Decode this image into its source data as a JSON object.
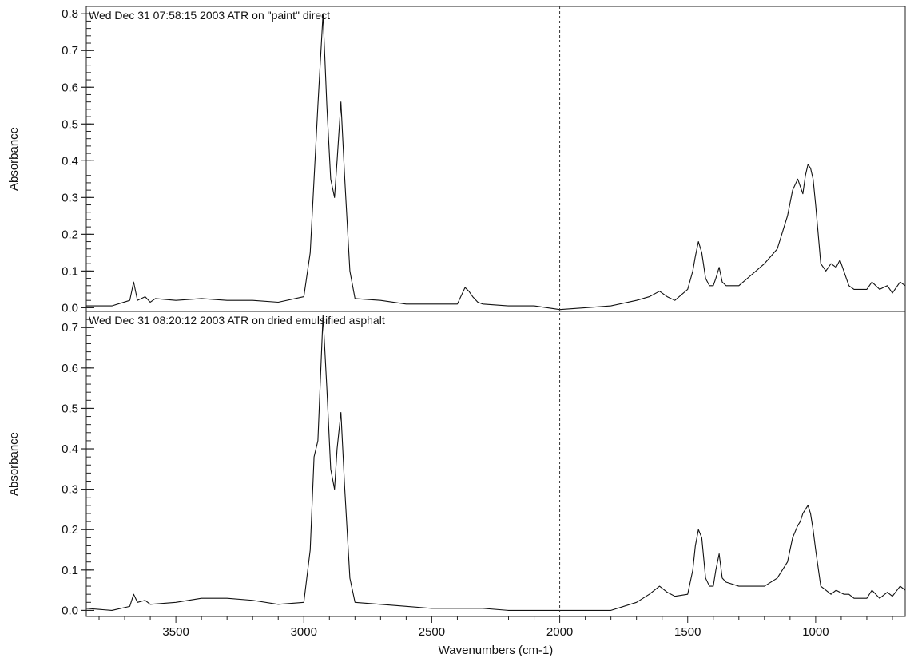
{
  "chart_data": {
    "type": "line",
    "xlabel": "Wavenumbers (cm-1)",
    "xlim": [
      3850,
      650
    ],
    "x_reversed": true,
    "xticks": [
      3500,
      3000,
      2500,
      2000,
      1500,
      1000
    ],
    "xtick_labels": [
      "3500",
      "3000",
      "2500",
      "2000",
      "1500",
      "1000"
    ],
    "reference_line_x": 2000,
    "panels": [
      {
        "title": "Wed Dec 31 07:58:15 2003  ATR on \"paint\" direct",
        "ylabel": "Absorbance",
        "ylim": [
          -0.01,
          0.82
        ],
        "yticks": [
          0.0,
          0.1,
          0.2,
          0.3,
          0.4,
          0.5,
          0.6,
          0.7,
          0.8
        ],
        "ytick_labels": [
          "0.0",
          "0.1",
          "0.2",
          "0.3",
          "0.4",
          "0.5",
          "0.6",
          "0.7",
          "0.8"
        ],
        "series": [
          {
            "x": [
              3850,
              3750,
              3680,
              3665,
              3650,
              3620,
              3600,
              3580,
              3500,
              3400,
              3300,
              3200,
              3100,
              3000,
              2975,
              2960,
              2945,
              2925,
              2910,
              2895,
              2880,
              2870,
              2855,
              2840,
              2820,
              2800,
              2700,
              2600,
              2500,
              2400,
              2370,
              2355,
              2340,
              2320,
              2300,
              2200,
              2100,
              2000,
              1900,
              1800,
              1700,
              1650,
              1610,
              1580,
              1550,
              1500,
              1480,
              1470,
              1458,
              1445,
              1430,
              1415,
              1400,
              1390,
              1377,
              1365,
              1350,
              1300,
              1250,
              1200,
              1150,
              1110,
              1090,
              1070,
              1060,
              1050,
              1040,
              1030,
              1020,
              1010,
              1000,
              980,
              960,
              940,
              920,
              905,
              890,
              870,
              850,
              800,
              780,
              750,
              720,
              700,
              670,
              650
            ],
            "y": [
              0.005,
              0.005,
              0.02,
              0.07,
              0.02,
              0.03,
              0.015,
              0.025,
              0.02,
              0.025,
              0.02,
              0.02,
              0.015,
              0.03,
              0.15,
              0.35,
              0.55,
              0.8,
              0.55,
              0.35,
              0.3,
              0.4,
              0.56,
              0.35,
              0.1,
              0.025,
              0.02,
              0.01,
              0.01,
              0.01,
              0.055,
              0.045,
              0.03,
              0.015,
              0.01,
              0.005,
              0.005,
              -0.005,
              0.0,
              0.005,
              0.02,
              0.03,
              0.045,
              0.03,
              0.02,
              0.05,
              0.1,
              0.14,
              0.18,
              0.15,
              0.08,
              0.06,
              0.06,
              0.08,
              0.11,
              0.07,
              0.06,
              0.06,
              0.09,
              0.12,
              0.16,
              0.25,
              0.32,
              0.35,
              0.33,
              0.31,
              0.36,
              0.39,
              0.38,
              0.35,
              0.28,
              0.12,
              0.1,
              0.12,
              0.11,
              0.13,
              0.1,
              0.06,
              0.05,
              0.05,
              0.07,
              0.05,
              0.06,
              0.04,
              0.07,
              0.06
            ]
          }
        ]
      },
      {
        "title": "Wed Dec 31 08:20:12 2003  ATR on dried emulsified asphalt",
        "ylabel": "Absorbance",
        "ylim": [
          -0.015,
          0.74
        ],
        "yticks": [
          0.0,
          0.1,
          0.2,
          0.3,
          0.4,
          0.5,
          0.6,
          0.7
        ],
        "ytick_labels": [
          "0.0",
          "0.1",
          "0.2",
          "0.3",
          "0.4",
          "0.5",
          "0.6",
          "0.7"
        ],
        "series": [
          {
            "x": [
              3850,
              3750,
              3680,
              3665,
              3650,
              3620,
              3600,
              3500,
              3400,
              3300,
              3200,
              3100,
              3000,
              2975,
              2960,
              2945,
              2925,
              2910,
              2895,
              2880,
              2870,
              2855,
              2840,
              2820,
              2800,
              2700,
              2600,
              2500,
              2400,
              2300,
              2200,
              2100,
              2000,
              1900,
              1800,
              1700,
              1650,
              1610,
              1580,
              1550,
              1500,
              1480,
              1470,
              1458,
              1445,
              1430,
              1415,
              1400,
              1390,
              1377,
              1365,
              1350,
              1300,
              1250,
              1200,
              1150,
              1110,
              1090,
              1070,
              1060,
              1050,
              1040,
              1030,
              1020,
              1010,
              1000,
              980,
              960,
              940,
              920,
              905,
              890,
              870,
              850,
              800,
              780,
              750,
              720,
              700,
              670,
              650
            ],
            "y": [
              0.005,
              0.0,
              0.01,
              0.04,
              0.02,
              0.025,
              0.015,
              0.02,
              0.03,
              0.03,
              0.025,
              0.015,
              0.02,
              0.15,
              0.38,
              0.42,
              0.73,
              0.55,
              0.35,
              0.3,
              0.4,
              0.49,
              0.3,
              0.08,
              0.02,
              0.015,
              0.01,
              0.005,
              0.005,
              0.005,
              0.0,
              0.0,
              0.0,
              0.0,
              0.0,
              0.02,
              0.04,
              0.06,
              0.045,
              0.035,
              0.04,
              0.1,
              0.16,
              0.2,
              0.18,
              0.08,
              0.06,
              0.06,
              0.1,
              0.14,
              0.08,
              0.07,
              0.06,
              0.06,
              0.06,
              0.08,
              0.12,
              0.18,
              0.21,
              0.22,
              0.24,
              0.25,
              0.26,
              0.24,
              0.2,
              0.15,
              0.06,
              0.05,
              0.04,
              0.05,
              0.045,
              0.04,
              0.04,
              0.03,
              0.03,
              0.05,
              0.03,
              0.045,
              0.035,
              0.06,
              0.05
            ]
          }
        ]
      }
    ]
  }
}
